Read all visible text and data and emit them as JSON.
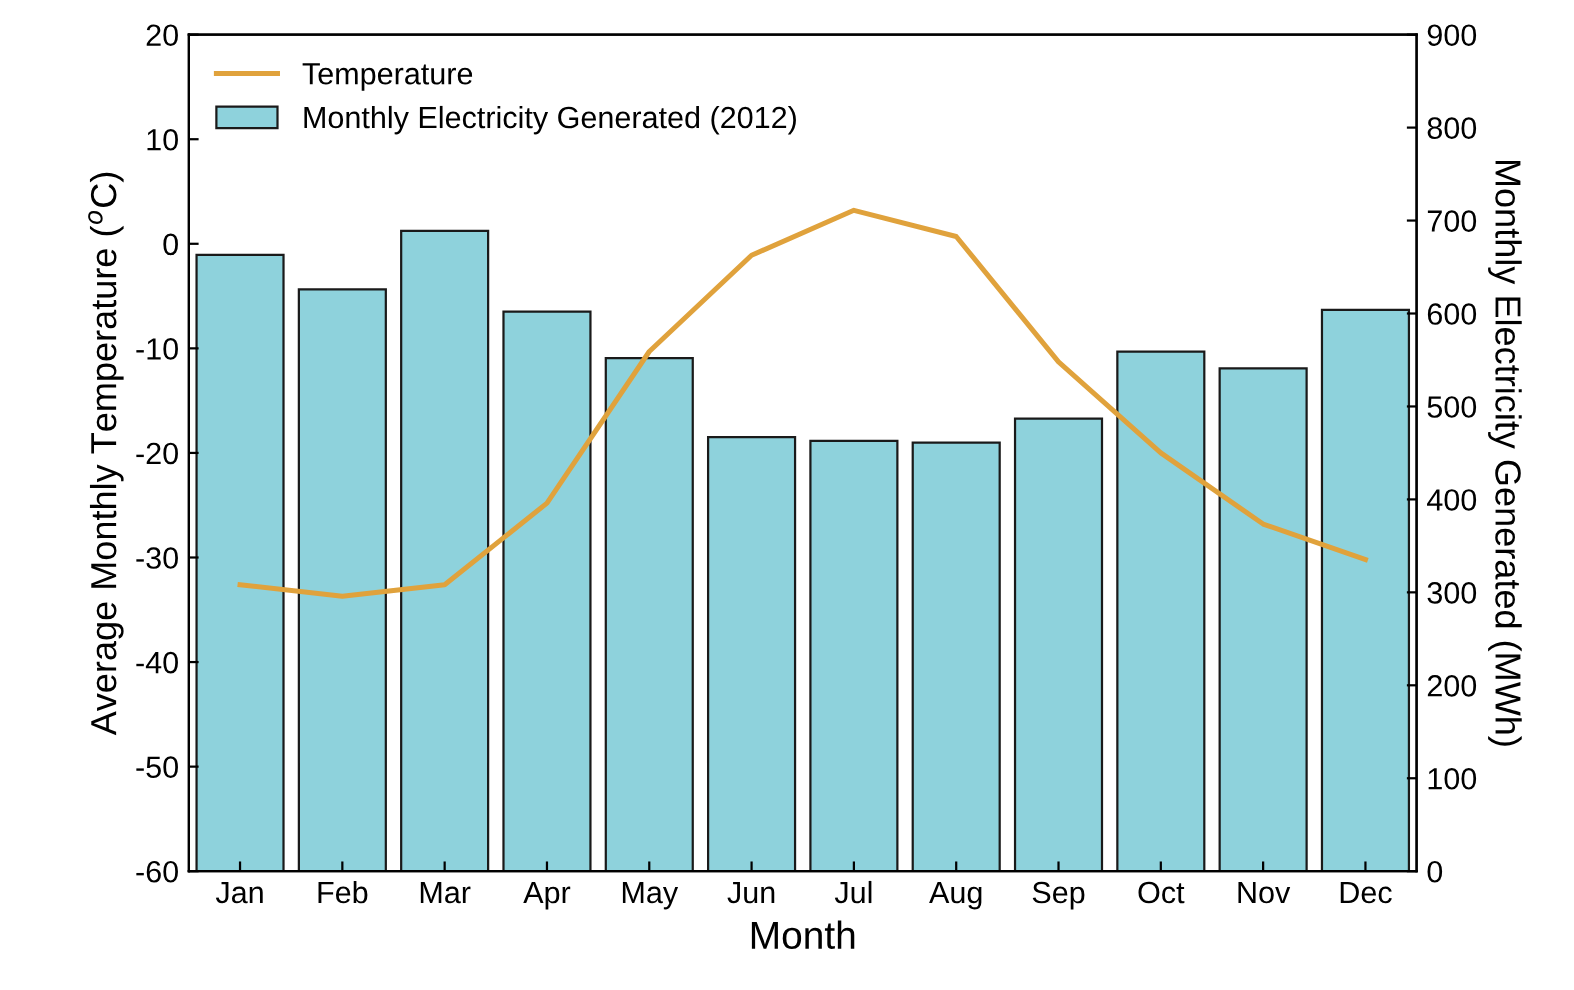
{
  "chart_data": {
    "type": "bar",
    "xlabel": "Month",
    "ylabel": "Average Monthly Temperature ($^{o}$C)",
    "y2label": "Monthly Electricity Generated (MWh)",
    "categories": [
      "Jan",
      "Feb",
      "Mar",
      "Apr",
      "May",
      "Jun",
      "Jul",
      "Aug",
      "Sep",
      "Oct",
      "Nov",
      "Dec"
    ],
    "series": [
      {
        "name": "Monthly Electricity Generated (2012)",
        "axis": "y2",
        "color": "#8ed2dc",
        "values": [
          663,
          626,
          689,
          602,
          552,
          467,
          463,
          461,
          487,
          559,
          541,
          604
        ]
      },
      {
        "name": "Temperature",
        "type": "line",
        "color": "#e0a23c",
        "values": [
          -32.6,
          -33.7,
          -32.6,
          -24.8,
          -10.3,
          -1.1,
          3.2,
          0.7,
          -11.3,
          -20.0,
          -26.8,
          -30.2
        ]
      }
    ],
    "ylim": [
      -60,
      20
    ],
    "yticks": [
      -60,
      -50,
      -40,
      -30,
      -20,
      -10,
      0,
      10,
      20
    ],
    "y2lim": [
      0,
      900
    ],
    "y2ticks": [
      0,
      100,
      200,
      300,
      400,
      500,
      600,
      700,
      800,
      900
    ],
    "grid": false,
    "legend": "top left",
    "marker": "none",
    "line_style": "solid"
  }
}
